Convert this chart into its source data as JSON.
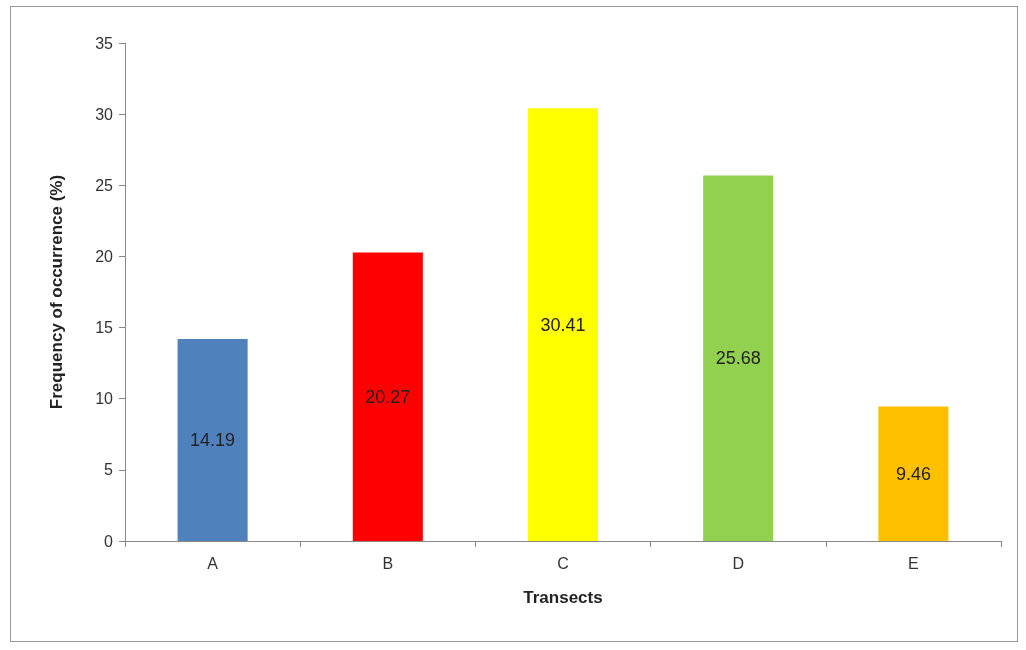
{
  "chart_data": {
    "type": "bar",
    "xlabel": "Transects",
    "ylabel": "Frequency of occurrence (%)",
    "categories": [
      "A",
      "B",
      "C",
      "D",
      "E"
    ],
    "values": [
      14.19,
      20.27,
      30.41,
      25.68,
      9.46
    ],
    "colors": [
      "#4f81bd",
      "#ff0000",
      "#ffff00",
      "#92d050",
      "#ffc000"
    ],
    "ylim": [
      0,
      35
    ],
    "yticks": [
      0,
      5,
      10,
      15,
      20,
      25,
      30,
      35
    ],
    "grid": false,
    "data_labels": true
  }
}
